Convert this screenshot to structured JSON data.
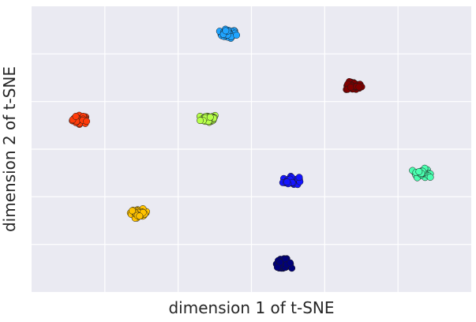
{
  "chart_data": {
    "type": "scatter",
    "title": "",
    "xlabel": "dimension 1 of t-SNE",
    "ylabel": "dimension 2 of t-SNE",
    "xlim": [
      0,
      6
    ],
    "ylim": [
      0,
      6
    ],
    "grid": true,
    "tick_labels_visible": false,
    "x_gridlines": [
      1,
      2,
      3,
      4,
      5
    ],
    "y_gridlines": [
      1,
      2,
      3,
      4,
      5
    ],
    "background_color": "#eaeaf2",
    "grid_color": "#ffffff",
    "series": [
      {
        "color": "#ff3b0a",
        "x": 0.67,
        "y": 3.62,
        "n": 40,
        "spread": 0.1
      },
      {
        "color": "#1fa4ff",
        "x": 2.68,
        "y": 5.42,
        "n": 40,
        "spread": 0.1
      },
      {
        "color": "#800000",
        "x": 4.4,
        "y": 4.32,
        "n": 40,
        "spread": 0.1
      },
      {
        "color": "#b6ff4a",
        "x": 2.42,
        "y": 3.64,
        "n": 40,
        "spread": 0.1
      },
      {
        "color": "#4affb0",
        "x": 5.32,
        "y": 2.5,
        "n": 40,
        "spread": 0.1
      },
      {
        "color": "#1414ff",
        "x": 3.54,
        "y": 2.33,
        "n": 40,
        "spread": 0.1
      },
      {
        "color": "#ffc300",
        "x": 1.47,
        "y": 1.65,
        "n": 40,
        "spread": 0.1
      },
      {
        "color": "#00007a",
        "x": 3.43,
        "y": 0.6,
        "n": 40,
        "spread": 0.1
      }
    ]
  }
}
